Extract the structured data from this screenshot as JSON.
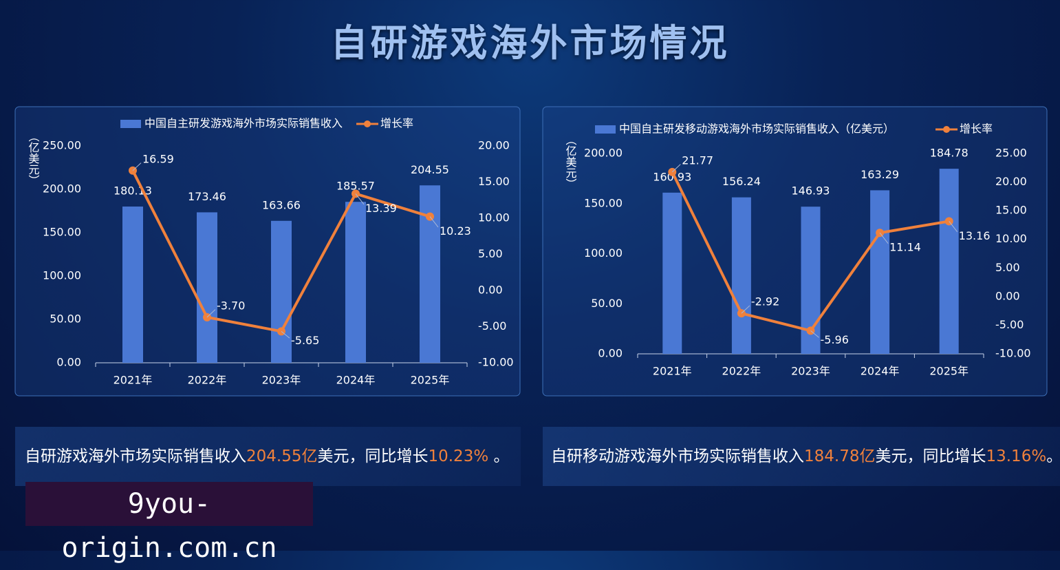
{
  "title": "自研游戏海外市场情况",
  "chart_data": [
    {
      "type": "bar-line",
      "ylabel": "（亿美元）",
      "categories": [
        "2021年",
        "2022年",
        "2023年",
        "2024年",
        "2025年"
      ],
      "series": [
        {
          "name": "中国自主研发游戏海外市场实际销售收入",
          "type": "bar",
          "color": "#4a78d4",
          "values": [
            180.13,
            173.46,
            163.66,
            185.57,
            204.55
          ]
        },
        {
          "name": "增长率",
          "type": "line",
          "axis": "y2",
          "color": "#f0813c",
          "values": [
            16.59,
            -3.7,
            -5.65,
            13.39,
            10.23
          ],
          "value_labels": [
            "16.59",
            "-3.70",
            "-5.65",
            "13.39",
            "10.23"
          ]
        }
      ],
      "ylim": [
        0,
        250
      ],
      "yticks": [
        {
          "value": 0,
          "label": "0.00"
        },
        {
          "value": 50,
          "label": "50.00"
        },
        {
          "value": 100,
          "label": "100.00"
        },
        {
          "value": 150,
          "label": "150.00"
        },
        {
          "value": 200,
          "label": "200.00"
        },
        {
          "value": 250,
          "label": "250.00"
        }
      ],
      "y2lim": [
        -10,
        20
      ],
      "y2ticks": [
        {
          "value": -10,
          "label": "-10.00"
        },
        {
          "value": -5,
          "label": "-5.00"
        },
        {
          "value": 0,
          "label": "0.00"
        },
        {
          "value": 5,
          "label": "5.00"
        },
        {
          "value": 10,
          "label": "10.00"
        },
        {
          "value": 15,
          "label": "15.00"
        },
        {
          "value": 20,
          "label": "20.00"
        }
      ]
    },
    {
      "type": "bar-line",
      "ylabel": "（亿美元）",
      "categories": [
        "2021年",
        "2022年",
        "2023年",
        "2024年",
        "2025年"
      ],
      "series": [
        {
          "name": "中国自主研发移动游戏海外市场实际销售收入（亿美元）",
          "type": "bar",
          "color": "#4a78d4",
          "values": [
            160.93,
            156.24,
            146.93,
            163.29,
            184.78
          ]
        },
        {
          "name": "增长率",
          "type": "line",
          "axis": "y2",
          "color": "#f0813c",
          "values": [
            21.77,
            -2.92,
            -5.96,
            11.14,
            13.16
          ]
        }
      ],
      "ylim": [
        0,
        200
      ],
      "yticks": [
        {
          "value": 0,
          "label": "0.00"
        },
        {
          "value": 50,
          "label": "50.00"
        },
        {
          "value": 100,
          "label": "100.00"
        },
        {
          "value": 150,
          "label": "150.00"
        },
        {
          "value": 200,
          "label": "200.00"
        }
      ],
      "y2lim": [
        -10,
        25
      ],
      "y2ticks": [
        {
          "value": -10,
          "label": "-10.00"
        },
        {
          "value": -5,
          "label": "-5.00"
        },
        {
          "value": 0,
          "label": "0.00"
        },
        {
          "value": 5,
          "label": "5.00"
        },
        {
          "value": 10,
          "label": "10.00"
        },
        {
          "value": 15,
          "label": "15.00"
        },
        {
          "value": 20,
          "label": "20.00"
        },
        {
          "value": 25,
          "label": "25.00"
        }
      ]
    }
  ],
  "captions": [
    [
      "自研游戏海外市场实际销售收入",
      "204.55亿",
      "美元，同比增长",
      "10.23%",
      " 。"
    ],
    [
      "自研移动游戏海外市场实际销售收入",
      "184.78亿",
      "美元，同比增长",
      "13.16%",
      "。"
    ]
  ],
  "watermark": "9you-origin.com.cn"
}
